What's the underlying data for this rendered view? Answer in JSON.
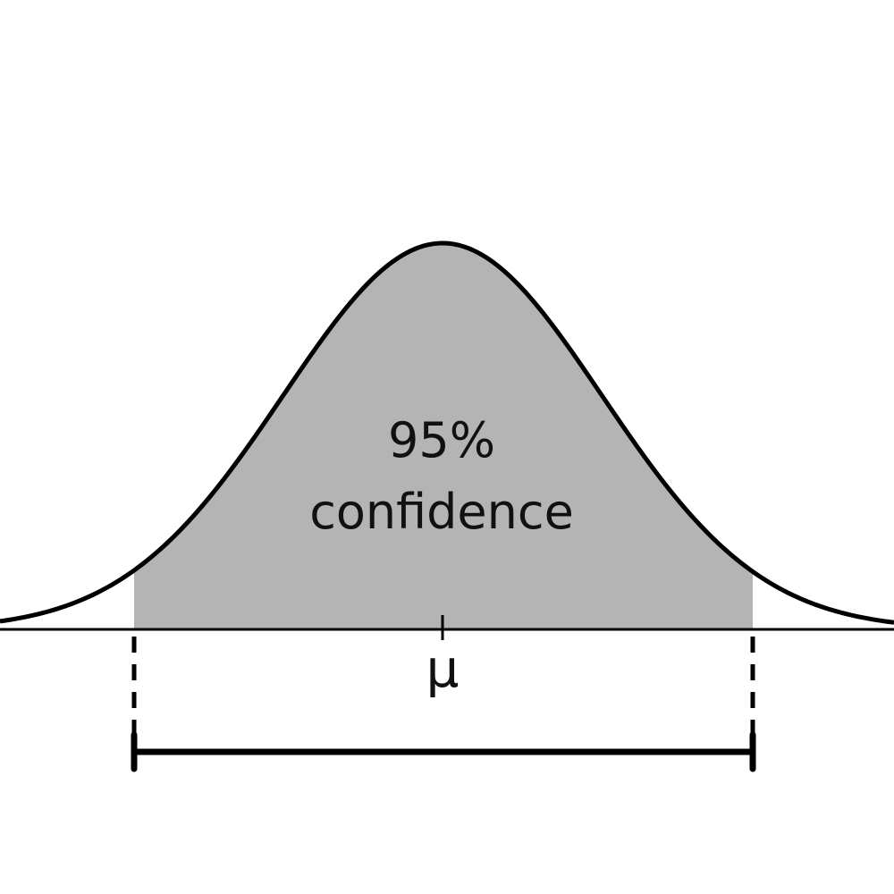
{
  "diagram": {
    "center_label": [
      "95%",
      "confidence"
    ],
    "axis_label": "μ",
    "colors": {
      "shaded_region": "#b4b4b4",
      "curve": "#000000",
      "background": "#ffffff"
    }
  }
}
